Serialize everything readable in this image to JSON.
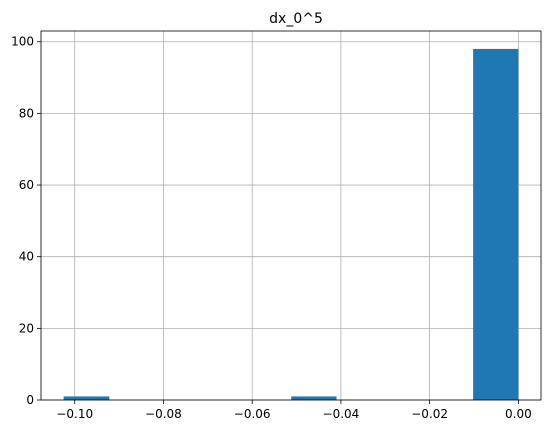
{
  "chart_data": {
    "type": "bar",
    "title": "dx_0^5",
    "xlabel": "",
    "ylabel": "",
    "bins": [
      {
        "x0": -0.1025,
        "x1": -0.0922,
        "count": 1
      },
      {
        "x0": -0.0922,
        "x1": -0.082,
        "count": 0
      },
      {
        "x0": -0.082,
        "x1": -0.0717,
        "count": 0
      },
      {
        "x0": -0.0717,
        "x1": -0.0615,
        "count": 0
      },
      {
        "x0": -0.0615,
        "x1": -0.0512,
        "count": 0
      },
      {
        "x0": -0.0512,
        "x1": -0.041,
        "count": 1
      },
      {
        "x0": -0.041,
        "x1": -0.0307,
        "count": 0
      },
      {
        "x0": -0.0307,
        "x1": -0.0205,
        "count": 0
      },
      {
        "x0": -0.0205,
        "x1": -0.0102,
        "count": 0
      },
      {
        "x0": -0.0102,
        "x1": 0.0,
        "count": 98
      }
    ],
    "xlim": [
      -0.1076,
      0.0051
    ],
    "ylim": [
      0,
      103
    ],
    "xticks": [
      -0.1,
      -0.08,
      -0.06,
      -0.04,
      -0.02,
      0.0
    ],
    "xtick_labels": [
      "−0.10",
      "−0.08",
      "−0.06",
      "−0.04",
      "−0.02",
      "0.00"
    ],
    "yticks": [
      0,
      20,
      40,
      60,
      80,
      100
    ],
    "ytick_labels": [
      "0",
      "20",
      "40",
      "60",
      "80",
      "100"
    ],
    "grid": true,
    "bar_color": "#1f77b4",
    "grid_color": "#b0b0b0"
  }
}
